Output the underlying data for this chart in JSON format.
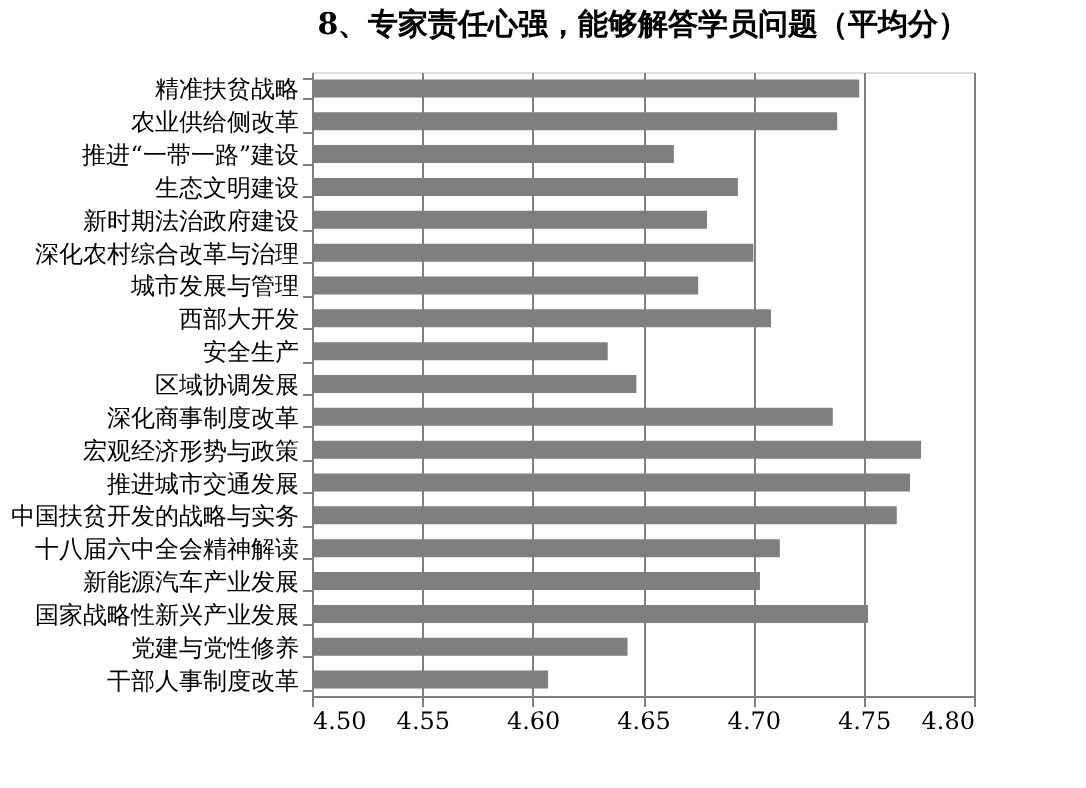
{
  "chart_data": {
    "type": "bar",
    "orientation": "horizontal",
    "title": "8、专家责任心强，能够解答学员问题（平均分）",
    "categories": [
      "精准扶贫战略",
      "农业供给侧改革",
      "推进“一带一路”建设",
      "生态文明建设",
      "新时期法治政府建设",
      "深化农村综合改革与治理",
      "城市发展与管理",
      "西部大开发",
      "安全生产",
      "区域协调发展",
      "深化商事制度改革",
      "宏观经济形势与政策",
      "推进城市交通发展",
      "中国扶贫开发的战略与实务",
      "十八届六中全会精神解读",
      "新能源汽车产业发展",
      "国家战略性新兴产业发展",
      "党建与党性修养",
      "干部人事制度改革"
    ],
    "values": [
      4.748,
      4.738,
      4.664,
      4.693,
      4.679,
      4.7,
      4.675,
      4.708,
      4.634,
      4.647,
      4.736,
      4.776,
      4.771,
      4.765,
      4.712,
      4.703,
      4.752,
      4.643,
      4.607
    ],
    "color": "#7f7f7f",
    "xlim": [
      4.5,
      4.8
    ],
    "xticks": [
      {
        "value": 4.5,
        "label": "4.50"
      },
      {
        "value": 4.55,
        "label": "4.55"
      },
      {
        "value": 4.6,
        "label": "4.60"
      },
      {
        "value": 4.65,
        "label": "4.65"
      },
      {
        "value": 4.7,
        "label": "4.70"
      },
      {
        "value": 4.75,
        "label": "4.75"
      },
      {
        "value": 4.8,
        "label": "4.80"
      }
    ],
    "grid": "x"
  }
}
